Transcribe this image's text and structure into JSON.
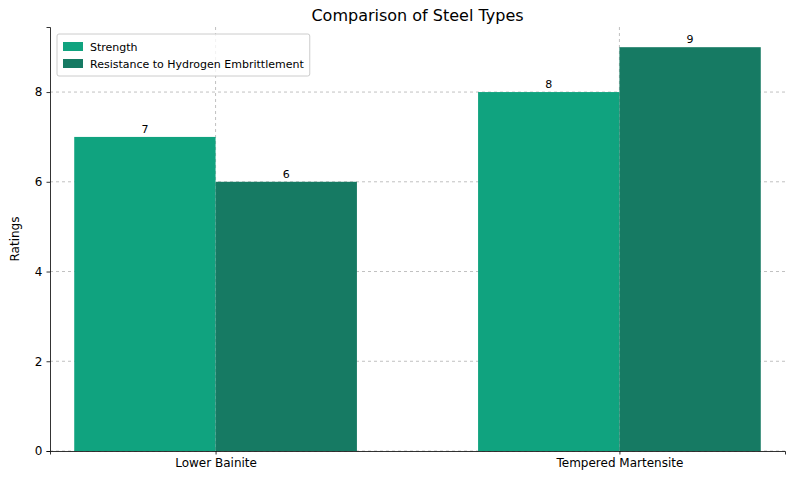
{
  "chart_data": {
    "type": "bar",
    "title": "Comparison of Steel Types",
    "y_label": "Ratings",
    "categories": [
      "Lower Bainite",
      "Tempered Martensite"
    ],
    "series": [
      {
        "name": "Strength",
        "color": "#10a37f",
        "values": [
          7,
          8
        ]
      },
      {
        "name": "Resistance to Hydrogen Embrittlement",
        "color": "#167a63",
        "values": [
          6,
          9
        ]
      }
    ],
    "ylim": [
      0,
      9.45
    ],
    "yticks": [
      0,
      2,
      4,
      6,
      8
    ],
    "grid": true,
    "legend": "upper left",
    "data_labels": true
  }
}
